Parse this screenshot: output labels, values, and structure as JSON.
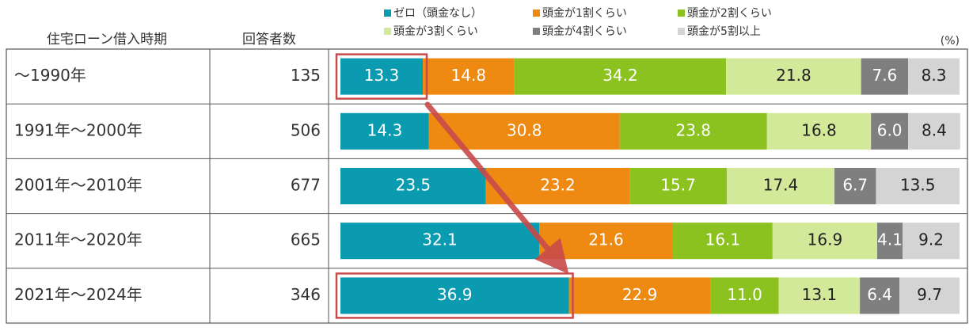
{
  "chart_data": {
    "type": "stacked-hbar",
    "table_headers": [
      "住宅ローン借入時期",
      "回答者数"
    ],
    "categories": [
      "～1990年",
      "1991年～2000年",
      "2001年～2010年",
      "2011年～2020年",
      "2021年～2024年"
    ],
    "respondents": [
      135,
      506,
      677,
      665,
      346
    ],
    "unit": "(%)",
    "xlim": [
      0,
      100
    ],
    "series": [
      {
        "name": "ゼロ（頭金なし）",
        "color": "#0b9bb0",
        "label_color": "#ffffff",
        "values": [
          13.3,
          14.3,
          23.5,
          32.1,
          36.9
        ],
        "value_labels": [
          "13.3",
          "14.3",
          "23.5",
          "32.1",
          "36.9"
        ]
      },
      {
        "name": "頭金が1割くらい",
        "color": "#ee8a12",
        "label_color": "#ffffff",
        "values": [
          14.8,
          30.8,
          23.2,
          21.6,
          22.9
        ],
        "value_labels": [
          "14.8",
          "30.8",
          "23.2",
          "21.6",
          "22.9"
        ]
      },
      {
        "name": "頭金が2割くらい",
        "color": "#8cc21f",
        "label_color": "#ffffff",
        "values": [
          34.2,
          23.8,
          15.7,
          16.1,
          11.0
        ],
        "value_labels": [
          "34.2",
          "23.8",
          "15.7",
          "16.1",
          "11.0"
        ]
      },
      {
        "name": "頭金が3割くらい",
        "color": "#d3e99a",
        "label_color": "#222222",
        "values": [
          21.8,
          16.8,
          17.4,
          16.9,
          13.1
        ],
        "value_labels": [
          "21.8",
          "16.8",
          "17.4",
          "16.9",
          "13.1"
        ]
      },
      {
        "name": "頭金が4割くらい",
        "color": "#7f7f7f",
        "label_color": "#ffffff",
        "values": [
          7.6,
          6.0,
          6.7,
          4.1,
          6.4
        ],
        "value_labels": [
          "7.6",
          "6.0",
          "6.7",
          "4.1",
          "6.4"
        ]
      },
      {
        "name": "頭金が5割以上",
        "color": "#d4d4d4",
        "label_color": "#222222",
        "values": [
          8.3,
          8.4,
          13.5,
          9.2,
          9.7
        ],
        "value_labels": [
          "8.3",
          "8.4",
          "13.5",
          "9.2",
          "9.7"
        ]
      }
    ]
  }
}
